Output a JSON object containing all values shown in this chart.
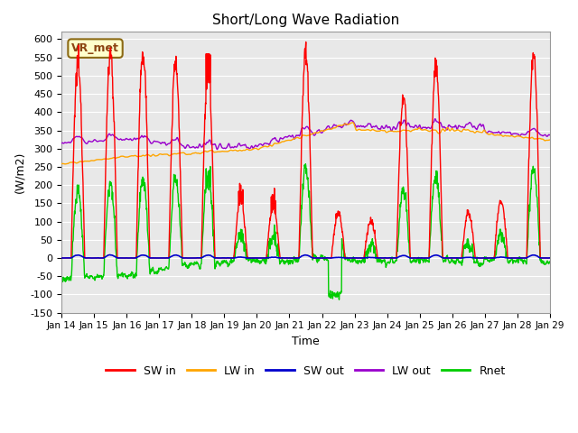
{
  "title": "Short/Long Wave Radiation",
  "xlabel": "Time",
  "ylabel": "(W/m2)",
  "ylim": [
    -150,
    620
  ],
  "yticks": [
    -150,
    -100,
    -50,
    0,
    50,
    100,
    150,
    200,
    250,
    300,
    350,
    400,
    450,
    500,
    550,
    600
  ],
  "xtick_labels": [
    "Jan 14",
    "Jan 15",
    "Jan 16",
    "Jan 17",
    "Jan 18",
    "Jan 19",
    "Jan 20",
    "Jan 21",
    "Jan 22",
    "Jan 23",
    "Jan 24",
    "Jan 25",
    "Jan 26",
    "Jan 27",
    "Jan 28",
    "Jan 29"
  ],
  "annotation_text": "VR_met",
  "colors": {
    "SW_in": "#ff0000",
    "LW_in": "#ffa500",
    "SW_out": "#0000cd",
    "LW_out": "#9900cc",
    "Rnet": "#00cc00"
  },
  "bg_color": "#e8e8e8",
  "legend_labels": [
    "SW in",
    "LW in",
    "SW out",
    "LW out",
    "Rnet"
  ]
}
